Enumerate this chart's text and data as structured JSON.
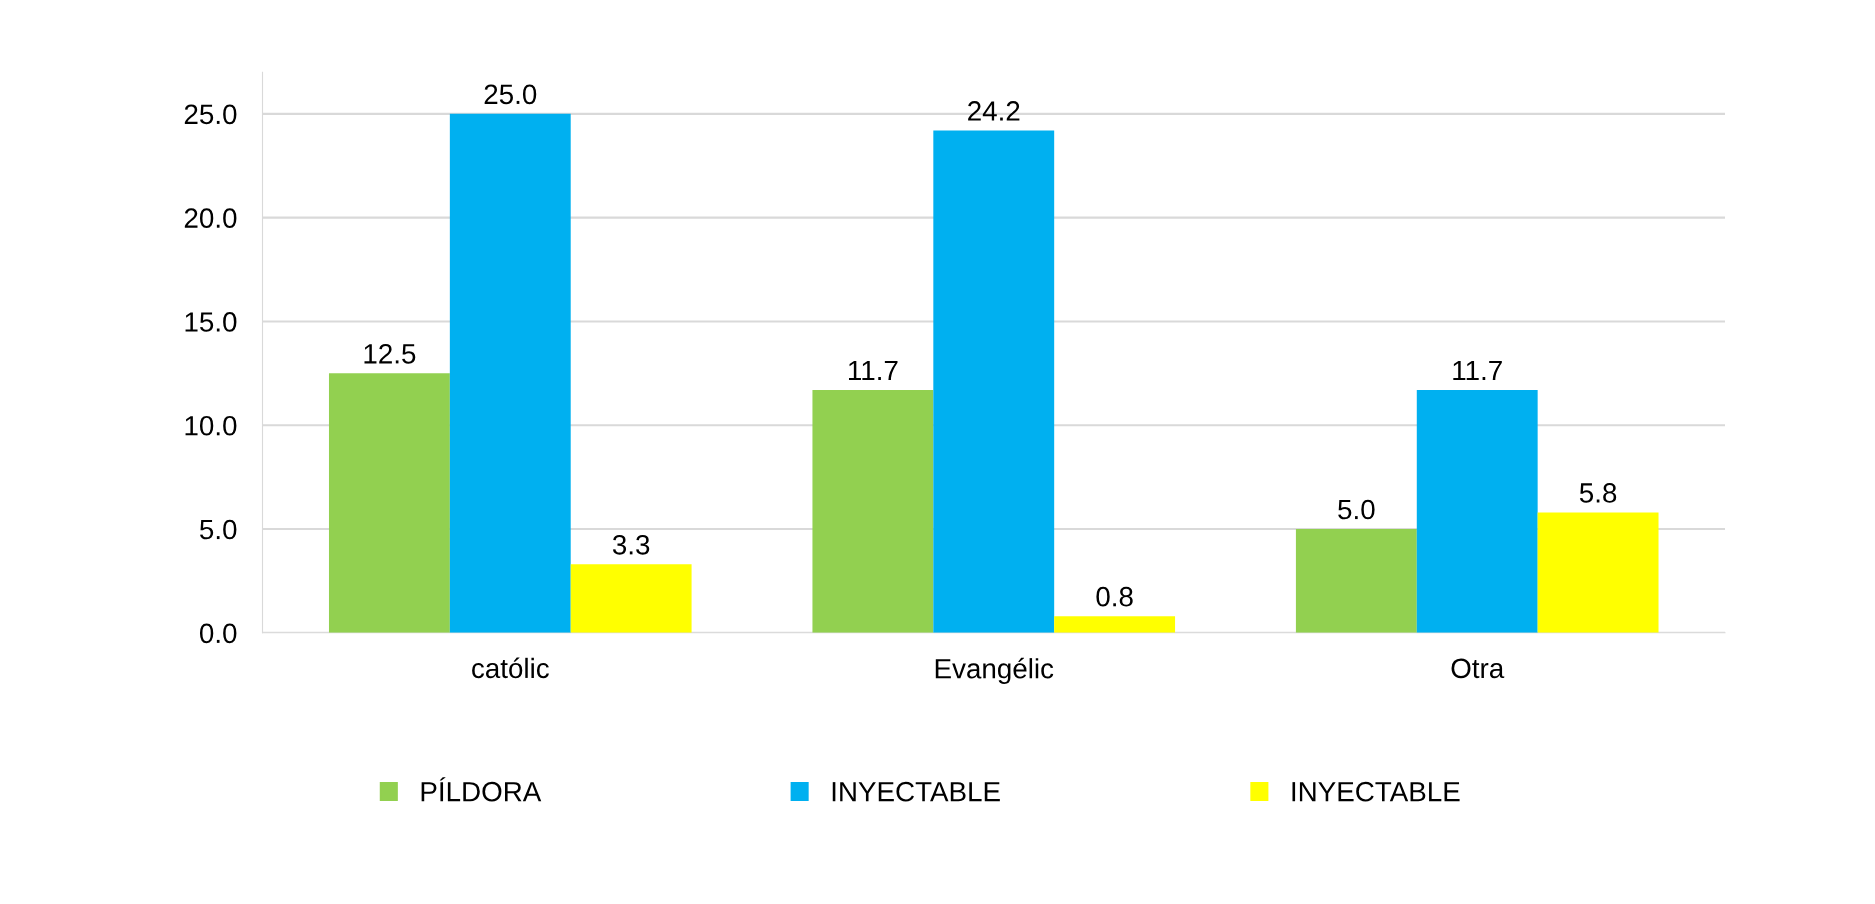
{
  "chart_data": {
    "type": "bar",
    "categories": [
      "católic",
      "Evangélic",
      "Otra"
    ],
    "series": [
      {
        "name": "PÍLDORA",
        "color": "#92d050",
        "values": [
          12.5,
          11.7,
          5.0
        ]
      },
      {
        "name": "INYECTABLE",
        "color": "#00b0f0",
        "values": [
          25.0,
          24.2,
          11.7
        ]
      },
      {
        "name": "INYECTABLE",
        "color": "#ffff00",
        "values": [
          3.3,
          0.8,
          5.8
        ]
      }
    ],
    "ylim": [
      0,
      27
    ],
    "yticks": [
      {
        "value": 0,
        "label": "0.0"
      },
      {
        "value": 5,
        "label": "5.0"
      },
      {
        "value": 10,
        "label": "10.0"
      },
      {
        "value": 15,
        "label": "15.0"
      },
      {
        "value": 20,
        "label": "20.0"
      },
      {
        "value": 25,
        "label": "25.0"
      }
    ],
    "value_labels": [
      [
        "12.5",
        "11.7",
        "5.0"
      ],
      [
        "25.0",
        "24.2",
        "11.7"
      ],
      [
        "3.3",
        "0.8",
        "5.8"
      ]
    ],
    "grid": "y",
    "legend": "bottom"
  }
}
